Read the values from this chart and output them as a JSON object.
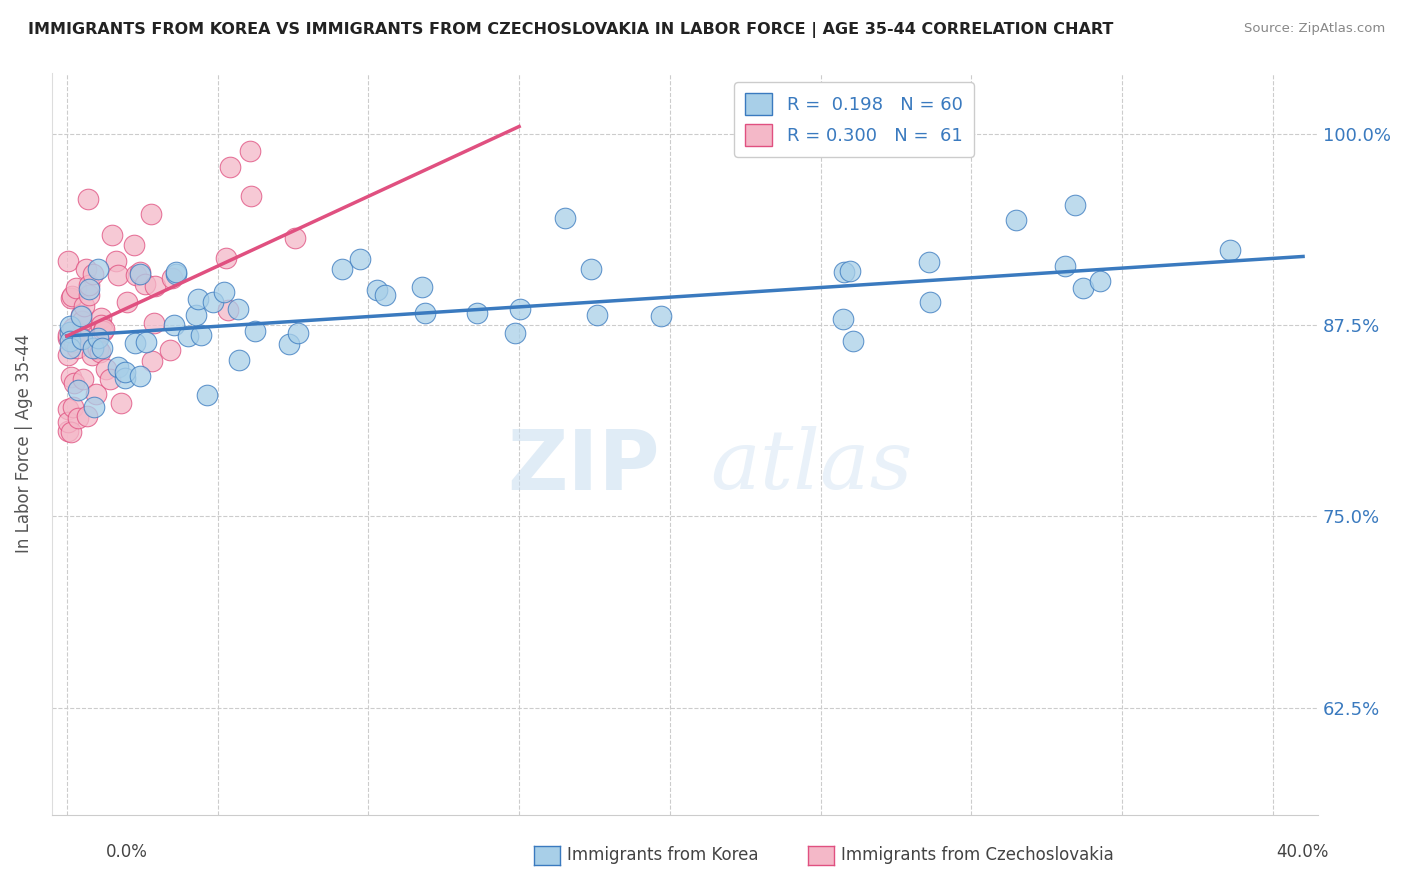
{
  "title": "IMMIGRANTS FROM KOREA VS IMMIGRANTS FROM CZECHOSLOVAKIA IN LABOR FORCE | AGE 35-44 CORRELATION CHART",
  "source": "Source: ZipAtlas.com",
  "ylabel": "In Labor Force | Age 35-44",
  "y_ticks": [
    0.625,
    0.75,
    0.875,
    1.0
  ],
  "y_tick_labels": [
    "62.5%",
    "75.0%",
    "87.5%",
    "100.0%"
  ],
  "x_ticks": [
    0.0,
    0.05,
    0.1,
    0.15,
    0.2,
    0.25,
    0.3,
    0.35,
    0.4
  ],
  "x_tick_labels": [
    "",
    "",
    "",
    "",
    "",
    "",
    "",
    "",
    ""
  ],
  "xlim": [
    -0.005,
    0.415
  ],
  "ylim": [
    0.555,
    1.04
  ],
  "legend_R1": "0.198",
  "legend_N1": "60",
  "legend_R2": "0.300",
  "legend_N2": "61",
  "color_korea": "#a8cfe8",
  "color_czech": "#f4b8c8",
  "color_korea_line": "#3a7abf",
  "color_czech_line": "#e05080",
  "watermark_zip": "ZIP",
  "watermark_atlas": "atlas",
  "grid_color": "#cccccc",
  "background_color": "#ffffff",
  "korea_trend_x0": 0.0,
  "korea_trend_y0": 0.868,
  "korea_trend_x1": 0.41,
  "korea_trend_y1": 0.92,
  "czech_trend_x0": 0.0,
  "czech_trend_y0": 0.868,
  "czech_trend_x1": 0.15,
  "czech_trend_y1": 1.005
}
